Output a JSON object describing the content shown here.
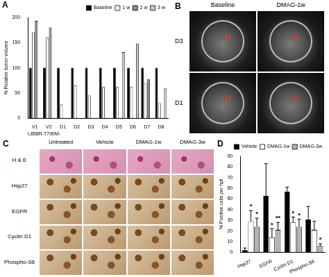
{
  "chart_data": [
    {
      "type": "bar",
      "panel_label": "A",
      "y_label": "% Relative tumor volume",
      "x_label": "L858R-T790M-",
      "categories": [
        "V1",
        "V2",
        "D1",
        "D2",
        "D3",
        "D4",
        "D5",
        "D6",
        "D7",
        "D8"
      ],
      "series": [
        {
          "name": "Baseline",
          "color": "#000000",
          "values": [
            100,
            100,
            100,
            100,
            100,
            100,
            100,
            100,
            100,
            100
          ]
        },
        {
          "name": "1 w",
          "color": "#ffffff",
          "values": [
            170,
            160,
            27,
            65,
            45,
            62,
            62,
            62,
            70,
            30
          ]
        },
        {
          "name": "2 w",
          "color": "#8c8c8c",
          "values": [
            193,
            180,
            null,
            null,
            null,
            null,
            null,
            null,
            77,
            null
          ]
        },
        {
          "name": "3 w",
          "color": "#c8c8c8",
          "values": [
            null,
            null,
            null,
            null,
            null,
            null,
            131,
            148,
            null,
            60
          ]
        }
      ],
      "ylim": [
        0,
        200
      ],
      "yticks": [
        0,
        50,
        100,
        150,
        200
      ],
      "grid": false,
      "legend": "upper right"
    },
    {
      "type": "bar",
      "panel_label": "D",
      "y_label": "% Positive cells per hpf",
      "categories": [
        "Hsp27",
        "EGFR",
        "Cyclin D1",
        "Phospho-S6"
      ],
      "series": [
        {
          "name": "Vehicle",
          "color": "#000000",
          "values": [
            2,
            53,
            57,
            31
          ],
          "errors": [
            2,
            30,
            4,
            12
          ],
          "significance": [
            null,
            null,
            null,
            null
          ]
        },
        {
          "name": "DMAG-1w",
          "color": "#ffffff",
          "values": [
            29,
            14,
            28,
            21
          ],
          "errors": [
            10,
            8,
            5,
            8
          ],
          "significance": [
            "*",
            "*",
            "*",
            null
          ]
        },
        {
          "name": "DMAG-3w",
          "color": "#b4b4b4",
          "values": [
            24,
            21,
            24,
            6
          ],
          "errors": [
            8,
            7,
            7,
            2
          ],
          "significance": [
            "*",
            "**",
            "*",
            "*"
          ]
        }
      ],
      "ylim": [
        0,
        90
      ],
      "yticks": [
        0,
        10,
        20,
        30,
        40,
        50,
        60,
        70,
        80,
        90
      ],
      "grid": false,
      "legend": "upper right"
    }
  ],
  "images": [
    {
      "panel_label": "B",
      "columns": [
        "Baseline",
        "DMAG-1w"
      ],
      "rows": [
        "D3",
        "D1"
      ],
      "marker": "H"
    },
    {
      "panel_label": "C",
      "columns": [
        "Untreated",
        "Vehicle",
        "DMAG-1w",
        "DMAG-3w"
      ],
      "rows": [
        "H & E",
        "Hsp27",
        "EGFR",
        "Cyclin D1",
        "Phospho-S6"
      ]
    }
  ]
}
